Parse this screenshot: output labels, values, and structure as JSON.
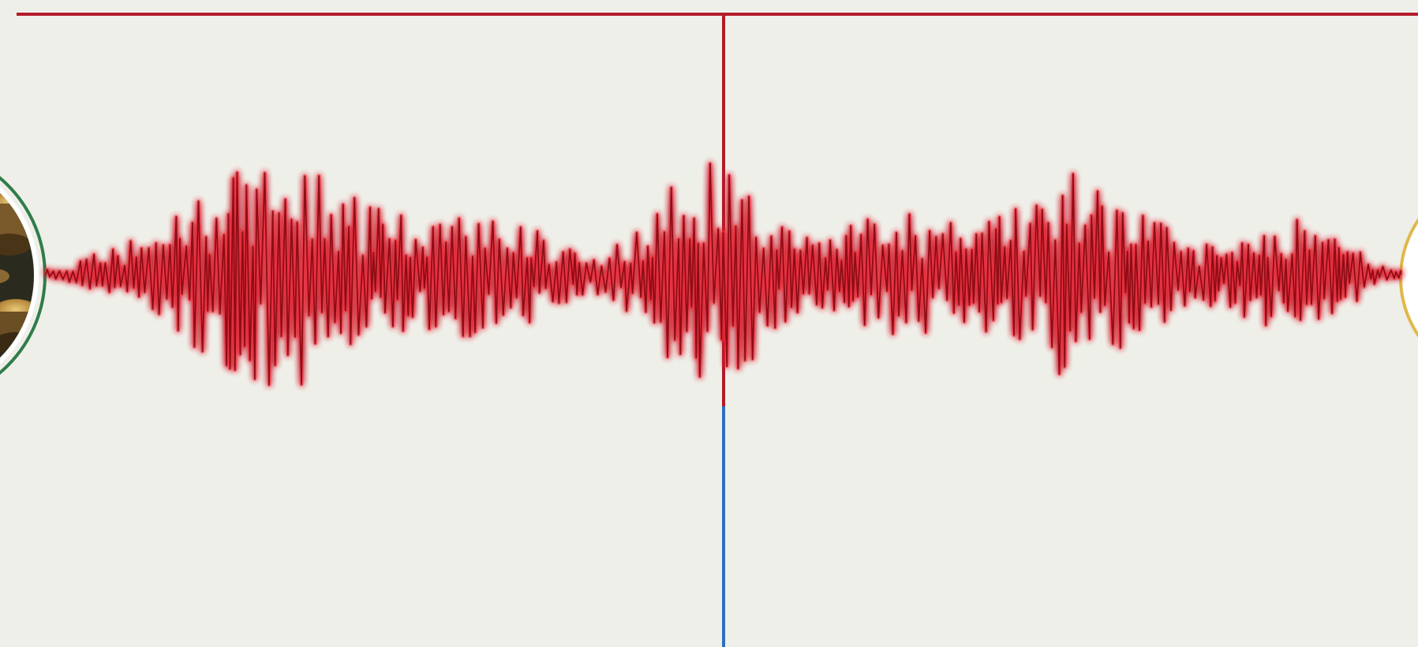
{
  "colors": {
    "background": "#efefe9",
    "waveform": "#b0151f",
    "waveform_glow": "#ff3344",
    "top_rule": "#b31b2a",
    "center_line_upper": "#b31b2a",
    "center_line_lower": "#2f6fc0",
    "left_medallion_ring": "#2f7d4a",
    "left_medallion_fill": "#2a2a1e",
    "left_medallion_coins": "#c9a45a",
    "right_medallion_ring": "#e0b84a"
  },
  "icons": {
    "left": "coins-medallion-icon",
    "right": "gold-medallion-icon"
  },
  "waveform": {
    "type": "amplitude-waveform",
    "envelope": "bursting",
    "peak_regions": [
      "left-third",
      "center",
      "right-third"
    ]
  }
}
